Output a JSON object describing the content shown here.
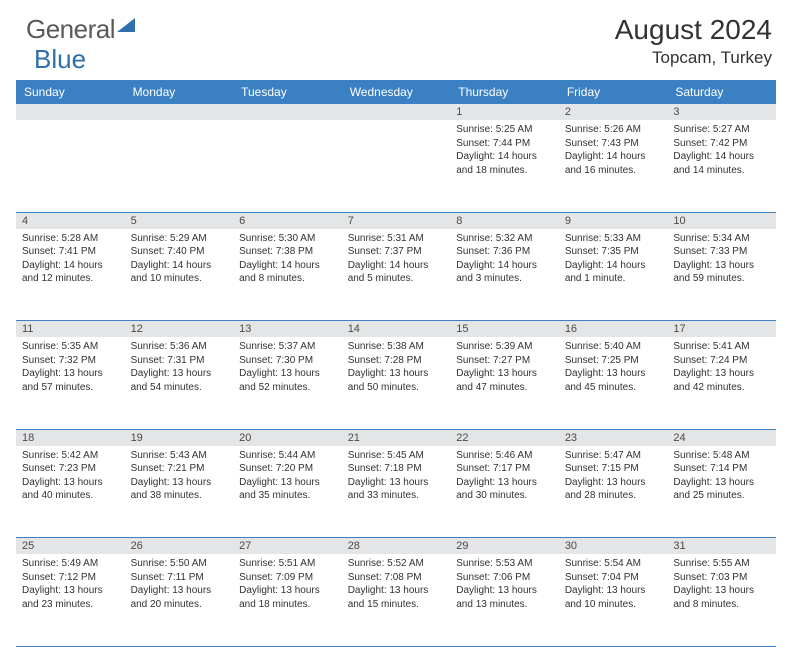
{
  "brand": {
    "part1": "General",
    "part2": "Blue"
  },
  "title": "August 2024",
  "location": "Topcam, Turkey",
  "weekdays": [
    "Sunday",
    "Monday",
    "Tuesday",
    "Wednesday",
    "Thursday",
    "Friday",
    "Saturday"
  ],
  "header_bg": "#3a80c3",
  "header_fg": "#ffffff",
  "daynum_bg": "#e4e5e7",
  "rule_color": "#3a80c3",
  "text_color": "#323232",
  "weeks": [
    [
      null,
      null,
      null,
      null,
      {
        "n": "1",
        "sr": "5:25 AM",
        "ss": "7:44 PM",
        "dl": "14 hours and 18 minutes."
      },
      {
        "n": "2",
        "sr": "5:26 AM",
        "ss": "7:43 PM",
        "dl": "14 hours and 16 minutes."
      },
      {
        "n": "3",
        "sr": "5:27 AM",
        "ss": "7:42 PM",
        "dl": "14 hours and 14 minutes."
      }
    ],
    [
      {
        "n": "4",
        "sr": "5:28 AM",
        "ss": "7:41 PM",
        "dl": "14 hours and 12 minutes."
      },
      {
        "n": "5",
        "sr": "5:29 AM",
        "ss": "7:40 PM",
        "dl": "14 hours and 10 minutes."
      },
      {
        "n": "6",
        "sr": "5:30 AM",
        "ss": "7:38 PM",
        "dl": "14 hours and 8 minutes."
      },
      {
        "n": "7",
        "sr": "5:31 AM",
        "ss": "7:37 PM",
        "dl": "14 hours and 5 minutes."
      },
      {
        "n": "8",
        "sr": "5:32 AM",
        "ss": "7:36 PM",
        "dl": "14 hours and 3 minutes."
      },
      {
        "n": "9",
        "sr": "5:33 AM",
        "ss": "7:35 PM",
        "dl": "14 hours and 1 minute."
      },
      {
        "n": "10",
        "sr": "5:34 AM",
        "ss": "7:33 PM",
        "dl": "13 hours and 59 minutes."
      }
    ],
    [
      {
        "n": "11",
        "sr": "5:35 AM",
        "ss": "7:32 PM",
        "dl": "13 hours and 57 minutes."
      },
      {
        "n": "12",
        "sr": "5:36 AM",
        "ss": "7:31 PM",
        "dl": "13 hours and 54 minutes."
      },
      {
        "n": "13",
        "sr": "5:37 AM",
        "ss": "7:30 PM",
        "dl": "13 hours and 52 minutes."
      },
      {
        "n": "14",
        "sr": "5:38 AM",
        "ss": "7:28 PM",
        "dl": "13 hours and 50 minutes."
      },
      {
        "n": "15",
        "sr": "5:39 AM",
        "ss": "7:27 PM",
        "dl": "13 hours and 47 minutes."
      },
      {
        "n": "16",
        "sr": "5:40 AM",
        "ss": "7:25 PM",
        "dl": "13 hours and 45 minutes."
      },
      {
        "n": "17",
        "sr": "5:41 AM",
        "ss": "7:24 PM",
        "dl": "13 hours and 42 minutes."
      }
    ],
    [
      {
        "n": "18",
        "sr": "5:42 AM",
        "ss": "7:23 PM",
        "dl": "13 hours and 40 minutes."
      },
      {
        "n": "19",
        "sr": "5:43 AM",
        "ss": "7:21 PM",
        "dl": "13 hours and 38 minutes."
      },
      {
        "n": "20",
        "sr": "5:44 AM",
        "ss": "7:20 PM",
        "dl": "13 hours and 35 minutes."
      },
      {
        "n": "21",
        "sr": "5:45 AM",
        "ss": "7:18 PM",
        "dl": "13 hours and 33 minutes."
      },
      {
        "n": "22",
        "sr": "5:46 AM",
        "ss": "7:17 PM",
        "dl": "13 hours and 30 minutes."
      },
      {
        "n": "23",
        "sr": "5:47 AM",
        "ss": "7:15 PM",
        "dl": "13 hours and 28 minutes."
      },
      {
        "n": "24",
        "sr": "5:48 AM",
        "ss": "7:14 PM",
        "dl": "13 hours and 25 minutes."
      }
    ],
    [
      {
        "n": "25",
        "sr": "5:49 AM",
        "ss": "7:12 PM",
        "dl": "13 hours and 23 minutes."
      },
      {
        "n": "26",
        "sr": "5:50 AM",
        "ss": "7:11 PM",
        "dl": "13 hours and 20 minutes."
      },
      {
        "n": "27",
        "sr": "5:51 AM",
        "ss": "7:09 PM",
        "dl": "13 hours and 18 minutes."
      },
      {
        "n": "28",
        "sr": "5:52 AM",
        "ss": "7:08 PM",
        "dl": "13 hours and 15 minutes."
      },
      {
        "n": "29",
        "sr": "5:53 AM",
        "ss": "7:06 PM",
        "dl": "13 hours and 13 minutes."
      },
      {
        "n": "30",
        "sr": "5:54 AM",
        "ss": "7:04 PM",
        "dl": "13 hours and 10 minutes."
      },
      {
        "n": "31",
        "sr": "5:55 AM",
        "ss": "7:03 PM",
        "dl": "13 hours and 8 minutes."
      }
    ]
  ],
  "labels": {
    "sunrise": "Sunrise: ",
    "sunset": "Sunset: ",
    "daylight": "Daylight: "
  }
}
